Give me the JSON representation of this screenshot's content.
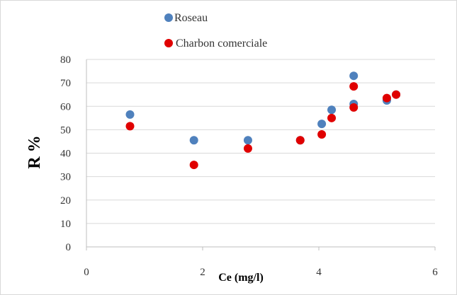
{
  "chart_data": {
    "type": "scatter",
    "title": "",
    "xlabel": "Ce (mg/l)",
    "ylabel": "R %",
    "xlim": [
      0,
      6
    ],
    "ylim": [
      0,
      80
    ],
    "xticks": [
      0,
      2,
      4,
      6
    ],
    "yticks": [
      0,
      10,
      20,
      30,
      40,
      50,
      60,
      70,
      80
    ],
    "grid": "horizontal",
    "legend_position": "top",
    "series": [
      {
        "name": "Roseau",
        "color": "#4f81bd",
        "points": [
          {
            "x": 0.75,
            "y": 56.5
          },
          {
            "x": 1.85,
            "y": 45.5
          },
          {
            "x": 2.78,
            "y": 45.5
          },
          {
            "x": 3.68,
            "y": 45.5
          },
          {
            "x": 4.05,
            "y": 52.5
          },
          {
            "x": 4.22,
            "y": 58.5
          },
          {
            "x": 4.6,
            "y": 73
          },
          {
            "x": 4.6,
            "y": 61
          },
          {
            "x": 5.17,
            "y": 62.5
          },
          {
            "x": 5.33,
            "y": 65
          }
        ]
      },
      {
        "name": "Charbon comerciale",
        "color": "#e00000",
        "points": [
          {
            "x": 0.75,
            "y": 51.5
          },
          {
            "x": 1.85,
            "y": 35
          },
          {
            "x": 2.78,
            "y": 42
          },
          {
            "x": 3.68,
            "y": 45.5
          },
          {
            "x": 4.05,
            "y": 48
          },
          {
            "x": 4.22,
            "y": 55
          },
          {
            "x": 4.6,
            "y": 68.5
          },
          {
            "x": 4.6,
            "y": 59.5
          },
          {
            "x": 5.17,
            "y": 63.5
          },
          {
            "x": 5.33,
            "y": 65
          }
        ]
      }
    ]
  }
}
